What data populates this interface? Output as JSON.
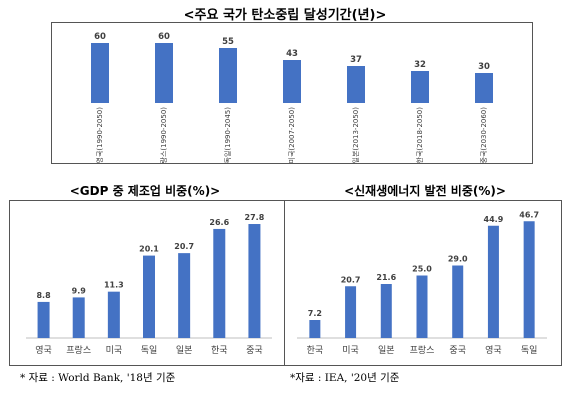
{
  "chart_data": [
    {
      "type": "bar",
      "title": "<주요 국가 탄소중립 달성기간(년)>",
      "categories": [
        "영국(1990-2050)",
        "프랑스(1990-2050)",
        "독일(1990-2045)",
        "미국(2007-2050)",
        "일본(2013-2050)",
        "한국(2018-2050)",
        "중국(2030-2060)"
      ],
      "values": [
        60,
        60,
        55,
        43,
        37,
        32,
        30
      ],
      "ylim": [
        0,
        70
      ],
      "grid": false,
      "bar_color": "#4472C4"
    },
    {
      "type": "bar",
      "title": "<GDP 중 제조업 비중(%)>",
      "categories": [
        "영국",
        "프랑스",
        "미국",
        "독일",
        "일본",
        "한국",
        "중국"
      ],
      "values": [
        8.8,
        9.9,
        11.3,
        20.1,
        20.7,
        26.6,
        27.8
      ],
      "ylim": [
        0,
        30
      ],
      "grid": false,
      "bar_color": "#4472C4"
    },
    {
      "type": "bar",
      "title": "<신재생에너지 발전 비중(%)>",
      "categories": [
        "한국",
        "미국",
        "일본",
        "프랑스",
        "중국",
        "영국",
        "독일"
      ],
      "values": [
        7.2,
        20.7,
        21.6,
        25.0,
        29.0,
        44.9,
        46.7
      ],
      "value_labels": [
        "7.2",
        "20.7",
        "21.6",
        "25.0",
        "29.0",
        "44.9",
        "46.7"
      ],
      "ylim": [
        0,
        50
      ],
      "grid": false,
      "bar_color": "#4472C4"
    }
  ],
  "sources": {
    "left": "* 자료 : World Bank, '18년 기준",
    "right": "*자료 : IEA, '20년 기준"
  }
}
